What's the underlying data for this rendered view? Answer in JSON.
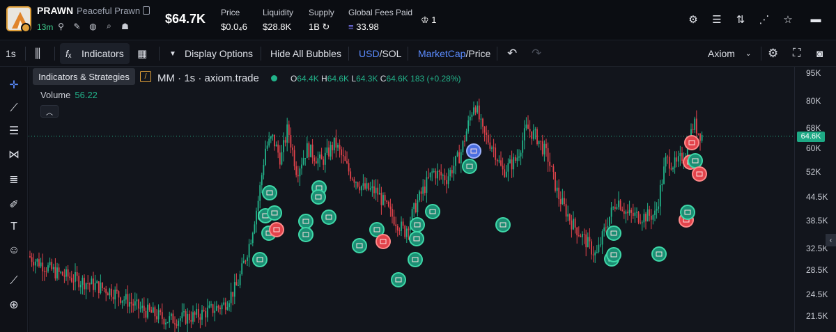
{
  "token": {
    "symbol": "PRAWN",
    "name": "Peaceful Prawn",
    "age": "13m",
    "market_cap": "$64.7K"
  },
  "stats": [
    {
      "label": "Price",
      "value": "$0.0₄6"
    },
    {
      "label": "Liquidity",
      "value": "$28.8K"
    },
    {
      "label": "Supply",
      "value": "1B"
    },
    {
      "label": "Global Fees Paid",
      "value": "33.98"
    }
  ],
  "holders_badge": "1",
  "toolbar": {
    "interval": "1s",
    "indicators_label": "Indicators",
    "display_options_label": "Display Options",
    "hide_bubbles_label": "Hide All Bubbles",
    "currency_usd": "USD",
    "currency_sol": "/SOL",
    "metric_mcap": "MarketCap",
    "metric_price": "/Price",
    "source": "Axiom"
  },
  "tooltip": "Indicators & Strategies",
  "legend": {
    "title": "MM · 1s · axiom.trade",
    "o": "64.4K",
    "h": "64.6K",
    "l": "64.3K",
    "c": "64.6K",
    "change": "183 (+0.28%)"
  },
  "volume": {
    "label": "Volume",
    "value": "56.22"
  },
  "chart_data": {
    "type": "candlestick",
    "y_scale": "log",
    "ticks": [
      "95K",
      "80K",
      "68K",
      "60K",
      "52K",
      "44.5K",
      "38.5K",
      "32.5K",
      "28.5K",
      "24.5K",
      "21.5K"
    ],
    "tick_values": [
      95000,
      80000,
      68000,
      60000,
      52000,
      44500,
      38500,
      32500,
      28500,
      24500,
      21500
    ],
    "last_price_label": "64.6K",
    "last_price": 64600
  },
  "colors": {
    "up": "#22b38a",
    "down": "#e2434b",
    "accent": "#5b8cff"
  }
}
